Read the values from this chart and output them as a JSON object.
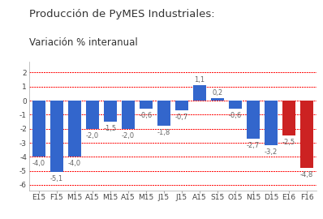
{
  "title_line1": "Producción de PyMES Industriales:",
  "title_line2": "Variación % interanual",
  "categories": [
    "E15",
    "F15",
    "M15",
    "A15",
    "M15",
    "A15",
    "M15",
    "J15",
    "J15",
    "A15",
    "S15",
    "O15",
    "N15",
    "D15",
    "E16",
    "F16"
  ],
  "values": [
    -4.0,
    -5.1,
    -4.0,
    -2.0,
    -1.5,
    -2.0,
    -0.6,
    -1.8,
    -0.7,
    1.1,
    0.2,
    -0.6,
    -2.7,
    -3.2,
    -2.5,
    -4.8
  ],
  "bar_colors": [
    "#3366cc",
    "#3366cc",
    "#3366cc",
    "#3366cc",
    "#3366cc",
    "#3366cc",
    "#3366cc",
    "#3366cc",
    "#3366cc",
    "#3366cc",
    "#3366cc",
    "#3366cc",
    "#3366cc",
    "#3366cc",
    "#cc2222",
    "#cc2222"
  ],
  "ylim": [
    -6.4,
    2.8
  ],
  "yticks": [
    -6,
    -5,
    -4,
    -3,
    -2,
    -1,
    0,
    1,
    2
  ],
  "hlines": [
    -6,
    -5,
    -4,
    -3,
    -2,
    -1,
    0,
    1,
    2
  ],
  "title_fontsize": 9.5,
  "subtitle_fontsize": 8.5,
  "label_fontsize": 6,
  "tick_fontsize": 6.5,
  "background_color": "#ffffff",
  "label_color": "#666666",
  "title_color": "#333333"
}
